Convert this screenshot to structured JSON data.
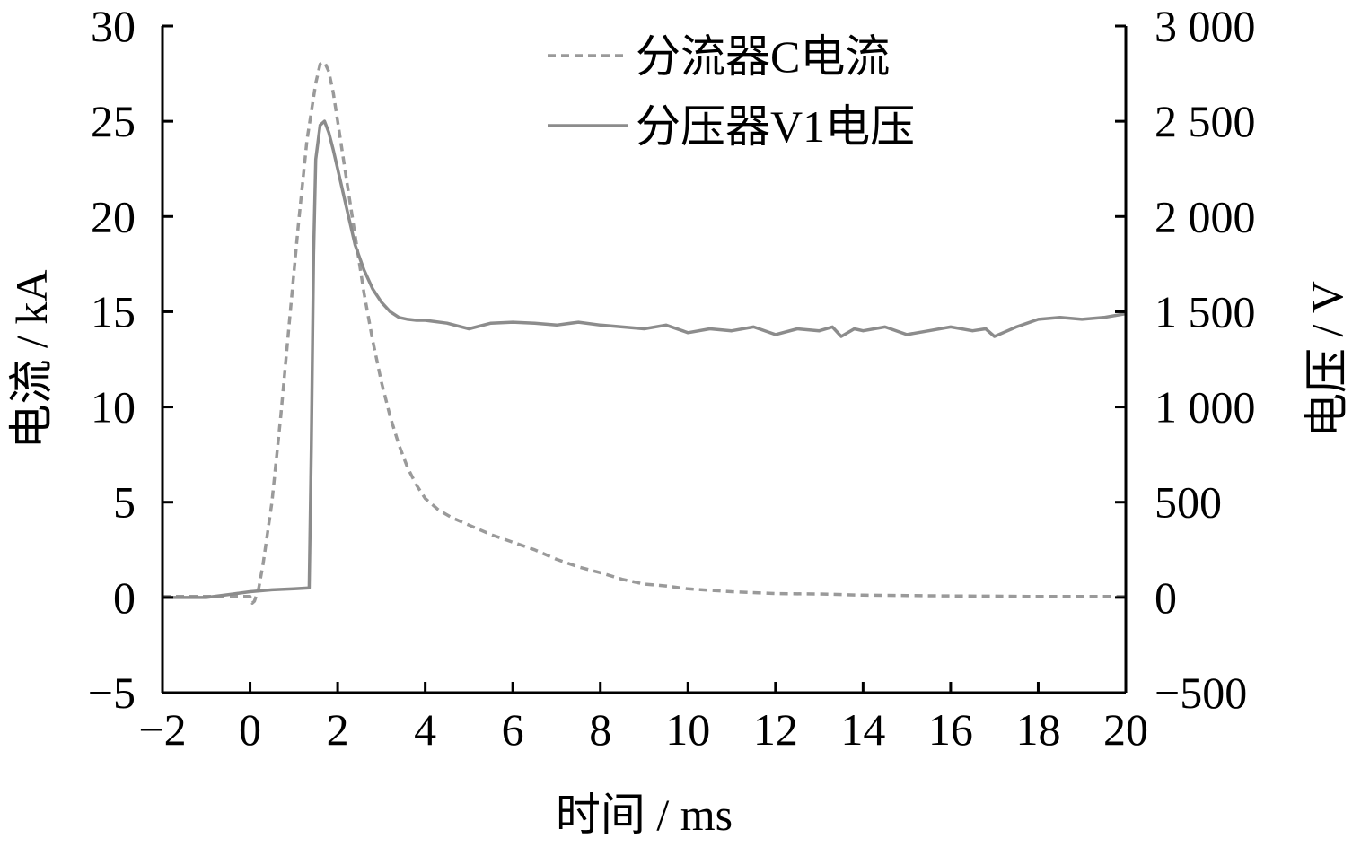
{
  "chart_data": {
    "type": "line",
    "xlabel": "时间 / ms",
    "ylabel_left": "电流 / kA",
    "ylabel_right": "电压 / V",
    "xlim": [
      -2,
      20
    ],
    "ylim_left": [
      -5,
      30
    ],
    "ylim_right": [
      -500,
      3000
    ],
    "x_ticks": [
      -2,
      0,
      2,
      4,
      6,
      8,
      10,
      12,
      14,
      16,
      18,
      20
    ],
    "x_tick_labels": [
      "−2",
      "0",
      "2",
      "4",
      "6",
      "8",
      "10",
      "12",
      "14",
      "16",
      "18",
      "20"
    ],
    "y_left_ticks": [
      -5,
      0,
      5,
      10,
      15,
      20,
      25,
      30
    ],
    "y_left_tick_labels": [
      "−5",
      "0",
      "5",
      "10",
      "15",
      "20",
      "25",
      "30"
    ],
    "y_right_ticks": [
      -500,
      0,
      500,
      1000,
      1500,
      2000,
      2500,
      3000
    ],
    "y_right_tick_labels": [
      "−500",
      "0",
      "500",
      "1 000",
      "1 500",
      "2 000",
      "2 500",
      "3 000"
    ],
    "grid": false,
    "legend_position": "top-center",
    "series": [
      {
        "name": "分流器C电流",
        "axis": "left",
        "style": "dashed",
        "color": "#9a9a9a",
        "x": [
          -2,
          -1,
          -0.5,
          0,
          0.05,
          0.1,
          0.2,
          0.3,
          0.5,
          0.7,
          0.9,
          1.1,
          1.3,
          1.5,
          1.6,
          1.7,
          1.8,
          1.9,
          2.0,
          2.2,
          2.4,
          2.6,
          2.8,
          3.0,
          3.2,
          3.4,
          3.6,
          3.8,
          4.0,
          4.3,
          4.6,
          5.0,
          5.5,
          6.0,
          6.5,
          7.0,
          7.5,
          8.0,
          8.5,
          9.0,
          9.5,
          10.0,
          11.0,
          12.0,
          13.0,
          14.0,
          15.0,
          16.0,
          17.0,
          18.0,
          19.0,
          20.0
        ],
        "y": [
          0.05,
          0.05,
          0.05,
          0.05,
          -0.3,
          -0.2,
          0.5,
          1.8,
          5.0,
          9.5,
          14.5,
          19.5,
          24.0,
          27.0,
          28.0,
          28.1,
          27.6,
          26.5,
          25.0,
          22.0,
          19.0,
          16.0,
          13.5,
          11.3,
          9.5,
          8.0,
          6.8,
          5.9,
          5.2,
          4.6,
          4.2,
          3.8,
          3.3,
          2.9,
          2.5,
          2.0,
          1.6,
          1.3,
          0.95,
          0.7,
          0.6,
          0.45,
          0.3,
          0.2,
          0.18,
          0.12,
          0.1,
          0.08,
          0.07,
          0.05,
          0.05,
          0.05
        ]
      },
      {
        "name": "分压器V1电压",
        "axis": "right",
        "style": "solid",
        "color": "#8c8c8c",
        "x": [
          -2,
          -1,
          0,
          0.5,
          1.0,
          1.35,
          1.4,
          1.45,
          1.5,
          1.6,
          1.7,
          1.8,
          1.9,
          2.0,
          2.2,
          2.4,
          2.6,
          2.8,
          3.0,
          3.2,
          3.4,
          3.6,
          3.8,
          4.0,
          4.5,
          5.0,
          5.5,
          6.0,
          6.5,
          7.0,
          7.5,
          8.0,
          8.5,
          9.0,
          9.5,
          10.0,
          10.5,
          11.0,
          11.5,
          12.0,
          12.5,
          13.0,
          13.3,
          13.5,
          13.8,
          14.0,
          14.5,
          15.0,
          15.5,
          16.0,
          16.5,
          16.8,
          17.0,
          17.3,
          17.5,
          18.0,
          18.5,
          19.0,
          19.5,
          20.0
        ],
        "y": [
          0,
          0,
          30,
          40,
          45,
          50,
          800,
          1800,
          2300,
          2480,
          2500,
          2440,
          2350,
          2250,
          2050,
          1850,
          1720,
          1620,
          1550,
          1500,
          1470,
          1460,
          1455,
          1455,
          1440,
          1410,
          1440,
          1445,
          1440,
          1430,
          1445,
          1430,
          1420,
          1410,
          1430,
          1390,
          1410,
          1400,
          1420,
          1380,
          1410,
          1400,
          1420,
          1370,
          1410,
          1400,
          1420,
          1380,
          1400,
          1420,
          1400,
          1410,
          1370,
          1400,
          1420,
          1460,
          1470,
          1460,
          1470,
          1490
        ]
      }
    ]
  }
}
